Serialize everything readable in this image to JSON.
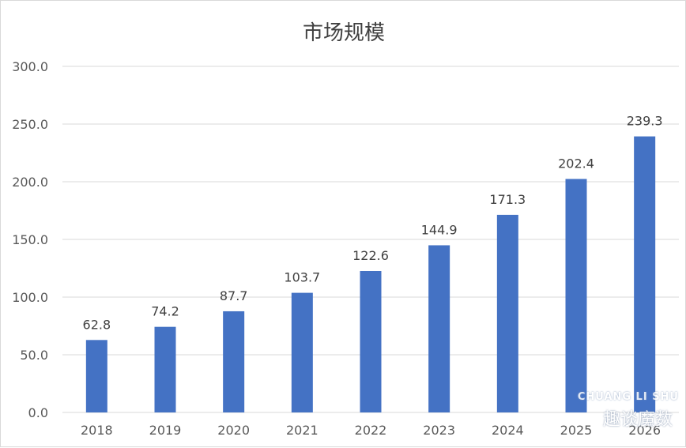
{
  "chart_data": {
    "type": "bar",
    "title": "市场规模",
    "categories": [
      "2018",
      "2019",
      "2020",
      "2021",
      "2022",
      "2023",
      "2024",
      "2025",
      "2026"
    ],
    "values": [
      62.8,
      74.2,
      87.7,
      103.7,
      122.6,
      144.9,
      171.3,
      202.4,
      239.3
    ],
    "value_labels": [
      "62.8",
      "74.2",
      "87.7",
      "103.7",
      "122.6",
      "144.9",
      "171.3",
      "202.4",
      "239.3"
    ],
    "ylim": [
      0,
      300
    ],
    "yticks": [
      "0.0",
      "50.0",
      "100.0",
      "150.0",
      "200.0",
      "250.0",
      "300.0"
    ],
    "ytick_values": [
      0,
      50,
      100,
      150,
      200,
      250,
      300
    ],
    "grid": true,
    "bar_color": "#4472C4",
    "grid_color": "#d9d9d9",
    "text_color": "#595959"
  },
  "watermark": {
    "text_en": "CHUANG LI SHU",
    "text_cn": "趣谈魔数"
  }
}
